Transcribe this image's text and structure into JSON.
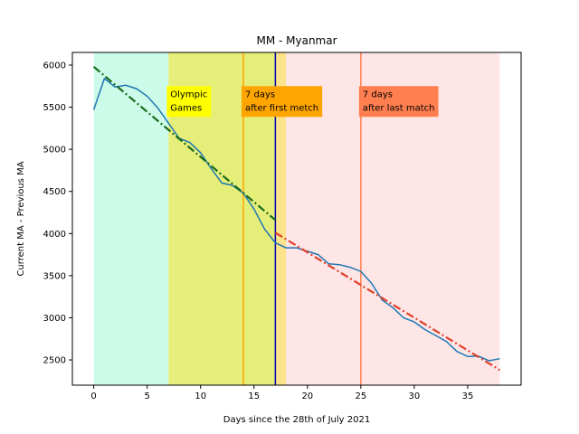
{
  "chart_data": {
    "type": "line",
    "title": "MM - Myanmar",
    "xlabel": "Days since the 28th of July 2021",
    "ylabel": "Current MA - Previous MA",
    "xlim": [
      -2,
      40
    ],
    "ylim": [
      2200,
      6150
    ],
    "xticks": [
      0,
      5,
      10,
      15,
      20,
      25,
      30,
      35
    ],
    "yticks": [
      2500,
      3000,
      3500,
      4000,
      4500,
      5000,
      5500,
      6000
    ],
    "grid": false,
    "regions": [
      {
        "x0": 0,
        "x1": 7,
        "color": "#cdfbe9"
      },
      {
        "x0": 7,
        "x1": 17,
        "color": "#e6ee7a"
      },
      {
        "x0": 17,
        "x1": 18,
        "color": "#fde48c"
      },
      {
        "x0": 18,
        "x1": 38,
        "color": "#fee6e6"
      }
    ],
    "vlines": [
      {
        "x": 14,
        "color": "#ffa500"
      },
      {
        "x": 17,
        "color": "#0000aa"
      },
      {
        "x": 25,
        "color": "#ff7f50"
      }
    ],
    "annotations": [
      {
        "lines": [
          "Olympic",
          "Games"
        ],
        "x": 7,
        "y": 5750,
        "bg": "#ffff00"
      },
      {
        "lines": [
          "7 days",
          "after first metch"
        ],
        "x": 14,
        "y": 5750,
        "bg": "#ffa500"
      },
      {
        "lines": [
          "7 days",
          "after last match"
        ],
        "x": 25,
        "y": 5750,
        "bg": "#ff7f50"
      }
    ],
    "series": [
      {
        "color": "#1f77b4",
        "style": "solid",
        "x": [
          0,
          1,
          2,
          3,
          4,
          5,
          6,
          7,
          8,
          9,
          10,
          11,
          12,
          13,
          14,
          15,
          16,
          17,
          18,
          19,
          20,
          21,
          22,
          23,
          24,
          25,
          26,
          27,
          28,
          29,
          30,
          31,
          32,
          33,
          34,
          35,
          36,
          37,
          38
        ],
        "y": [
          5470,
          5840,
          5740,
          5760,
          5720,
          5630,
          5490,
          5310,
          5130,
          5080,
          4960,
          4770,
          4600,
          4570,
          4480,
          4290,
          4050,
          3890,
          3830,
          3830,
          3790,
          3750,
          3640,
          3630,
          3600,
          3550,
          3410,
          3210,
          3120,
          3000,
          2950,
          2860,
          2790,
          2720,
          2600,
          2540,
          2545,
          2490,
          2515
        ]
      },
      {
        "color": "#1a6b1a",
        "style": "dashdot",
        "x": [
          0,
          17
        ],
        "y": [
          5980,
          4160
        ]
      },
      {
        "color": "#e0402a",
        "style": "dashdot",
        "x": [
          17,
          38
        ],
        "y": [
          4010,
          2380
        ]
      }
    ]
  }
}
